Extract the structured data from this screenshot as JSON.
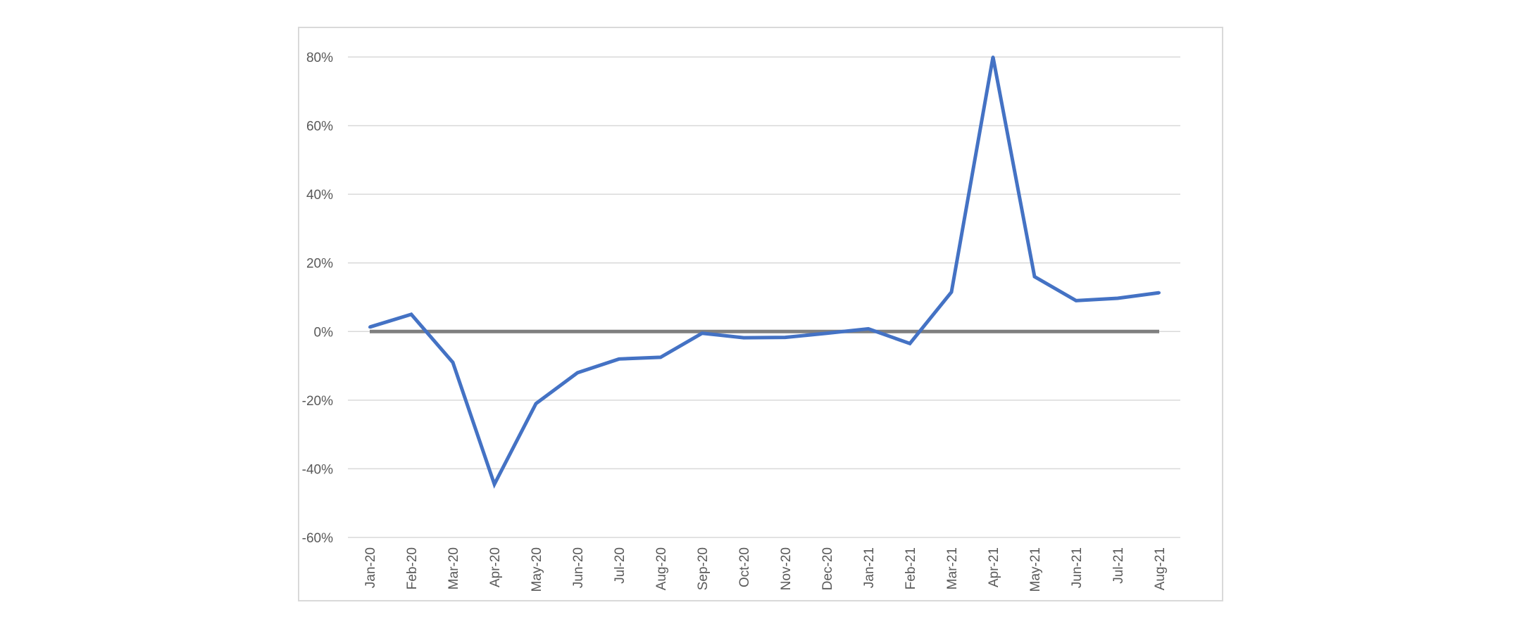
{
  "chart_data": {
    "type": "line",
    "title": "",
    "xlabel": "",
    "ylabel": "",
    "categories": [
      "Jan-20",
      "Feb-20",
      "Mar-20",
      "Apr-20",
      "May-20",
      "Jun-20",
      "Jul-20",
      "Aug-20",
      "Sep-20",
      "Oct-20",
      "Nov-20",
      "Dec-20",
      "Jan-21",
      "Feb-21",
      "Mar-21",
      "Apr-21",
      "May-21",
      "Jun-21",
      "Jul-21",
      "Aug-21"
    ],
    "series": [
      {
        "values": [
          0.013,
          0.05,
          -0.09,
          -0.445,
          -0.21,
          -0.12,
          -0.08,
          -0.075,
          -0.005,
          -0.018,
          -0.017,
          -0.005,
          0.008,
          -0.035,
          0.115,
          0.8,
          0.16,
          0.09,
          0.097,
          0.113
        ],
        "color": "#4472c4"
      }
    ],
    "baseline": {
      "value": 0,
      "color": "#7f7f7f"
    },
    "ylim": [
      -0.6,
      0.8
    ],
    "yticks": [
      0.8,
      0.6,
      0.4,
      0.2,
      0,
      -0.2,
      -0.4,
      -0.6
    ],
    "ytick_labels": [
      "80%",
      "60%",
      "40%",
      "20%",
      "0%",
      "-20%",
      "-40%",
      "-60%"
    ],
    "grid": true,
    "legend": "none",
    "colors": {
      "grid": "#d9d9d9",
      "tick_text": "#595959",
      "frame": "#d9d9d9"
    }
  }
}
